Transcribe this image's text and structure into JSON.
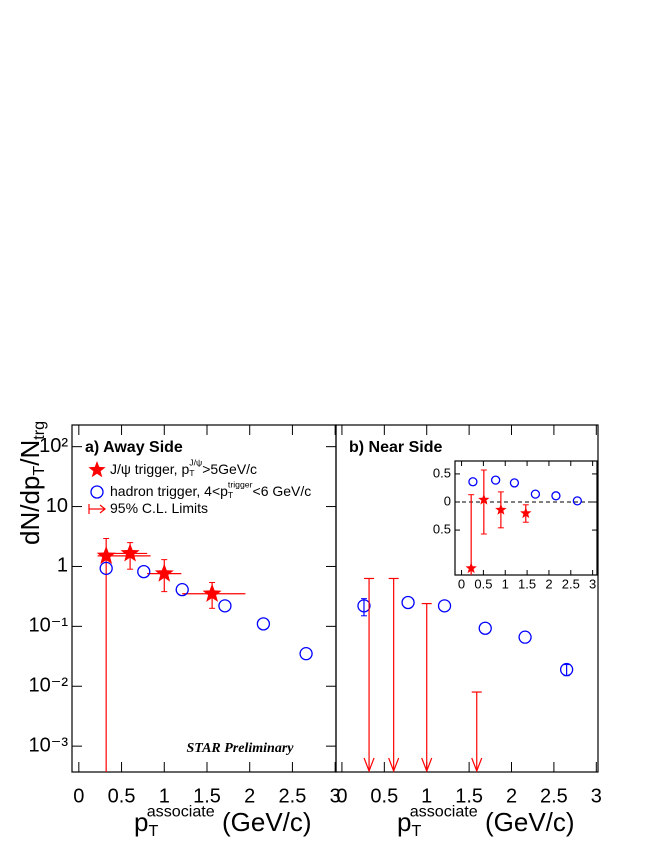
{
  "chart_data": [
    {
      "type": "scatter",
      "title": "a) Away Side",
      "annotation": "STAR Preliminary",
      "log_y": true,
      "xlim": [
        -0.08,
        3.01
      ],
      "xticks": [
        0,
        0.5,
        1,
        1.5,
        2,
        2.5,
        3
      ],
      "ylim": [
        0.00037,
        230
      ],
      "yticks": [
        {
          "value": 0.001,
          "label": "10⁻³"
        },
        {
          "value": 0.01,
          "label": "10⁻²"
        },
        {
          "value": 0.1,
          "label": "10⁻¹"
        },
        1,
        10,
        {
          "value": 100,
          "label": "10²"
        }
      ],
      "ylabel_parts": [
        {
          "text": "dN/dp"
        },
        {
          "text": "T",
          "shift": "sub"
        },
        {
          "text": "/N"
        },
        {
          "text": "trg",
          "shift": "sub"
        }
      ],
      "xlabel_parts": [
        {
          "text": "p"
        },
        {
          "text": "T",
          "shift": "sub"
        },
        {
          "text": "associate",
          "shift": "sup"
        },
        {
          "text": " (GeV/c)"
        }
      ],
      "legend": [
        {
          "marker": "star",
          "color": "#ff0000",
          "name_parts": [
            {
              "text": "J/ψ trigger, p"
            },
            {
              "text": "T",
              "shift": "sub"
            },
            {
              "text": "J/ψ",
              "shift": "sup"
            },
            {
              "text": ">5GeV/c"
            }
          ]
        },
        {
          "marker": "circle",
          "color": "#0000ff",
          "name_parts": [
            {
              "text": "hadron trigger, 4<p"
            },
            {
              "text": "T",
              "shift": "sub"
            },
            {
              "text": "trigger",
              "shift": "sup"
            },
            {
              "text": "<6 GeV/c"
            }
          ]
        },
        {
          "marker": "arrow",
          "color": "#ff0000",
          "name_parts": [
            {
              "text": "95% C.L. Limits"
            }
          ]
        }
      ],
      "series": [
        {
          "marker": "star",
          "color": "#ff0000",
          "x": [
            0.32,
            0.6,
            1.0,
            1.56
          ],
          "values": [
            1.5,
            1.65,
            0.76,
            0.35
          ],
          "x_err_low": [
            0.1,
            0.2,
            0.2,
            0.35
          ],
          "x_err_high": [
            0.52,
            0.2,
            0.2,
            0.39
          ],
          "y_err_low": [
            1.5,
            0.75,
            0.38,
            0.15
          ],
          "y_err_high": [
            1.43,
            0.85,
            0.54,
            0.19
          ]
        },
        {
          "marker": "circle",
          "color": "#0000ff",
          "x": [
            0.32,
            0.76,
            1.21,
            1.71,
            2.16,
            2.66
          ],
          "values": [
            0.93,
            0.82,
            0.41,
            0.22,
            0.11,
            0.035
          ]
        }
      ]
    },
    {
      "type": "scatter",
      "title": "b) Near Side",
      "log_y": true,
      "xlim": [
        -0.07,
        3.02
      ],
      "xticks": [
        0,
        0.5,
        1,
        1.5,
        2,
        2.5,
        3
      ],
      "ylim": [
        0.00037,
        230
      ],
      "xlabel_parts": [
        {
          "text": "p"
        },
        {
          "text": "T",
          "shift": "sub"
        },
        {
          "text": "associate",
          "shift": "sup"
        },
        {
          "text": " (GeV/c)"
        }
      ],
      "series": [
        {
          "marker": "circle",
          "color": "#0000ff",
          "x": [
            0.26,
            0.78,
            1.21,
            1.69,
            2.16,
            2.65
          ],
          "values": [
            0.22,
            0.25,
            0.22,
            0.093,
            0.066,
            0.019
          ],
          "y_err_low": [
            0.07,
            null,
            null,
            null,
            null,
            0.004
          ],
          "y_err_high": [
            0.07,
            null,
            null,
            null,
            null,
            0.004
          ]
        },
        {
          "marker": "arrow",
          "color": "#ff0000",
          "x": [
            0.32,
            0.61,
            1.0,
            1.59
          ],
          "values": [
            0.63,
            0.63,
            0.24,
            0.008
          ]
        }
      ]
    },
    {
      "type": "scatter",
      "log_y": false,
      "zero_line": true,
      "xlim": [
        -0.15,
        3.1
      ],
      "xticks": [
        0,
        0.5,
        1,
        1.5,
        2,
        2.5,
        3
      ],
      "ylim": [
        -1.3,
        0.73
      ],
      "yticks": [
        0.5,
        0,
        {
          "value": -0.5,
          "label": "0.5"
        }
      ],
      "series": [
        {
          "marker": "circle",
          "color": "#0000ff",
          "x": [
            0.26,
            0.78,
            1.21,
            1.69,
            2.16,
            2.65
          ],
          "values": [
            0.36,
            0.39,
            0.34,
            0.14,
            0.11,
            0.02
          ]
        },
        {
          "marker": "star",
          "color": "#ff0000",
          "x": [
            0.22,
            0.51,
            0.9,
            1.47
          ],
          "values": [
            -1.18,
            0.04,
            -0.14,
            -0.2
          ],
          "y_err_low": [
            1.31,
            0.61,
            0.32,
            0.16
          ],
          "y_err_high": [
            1.31,
            0.53,
            0.32,
            0.15
          ]
        }
      ]
    }
  ]
}
